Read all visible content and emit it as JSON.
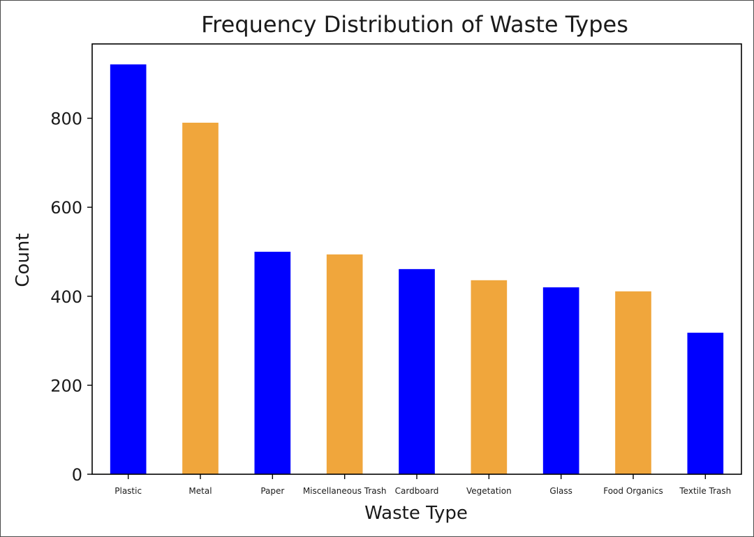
{
  "chart_data": {
    "type": "bar",
    "title": "Frequency Distribution of Waste Types",
    "xlabel": "Waste Type",
    "ylabel": "Count",
    "categories": [
      "Plastic",
      "Metal",
      "Paper",
      "Miscellaneous Trash",
      "Cardboard",
      "Vegetation",
      "Glass",
      "Food Organics",
      "Textile Trash"
    ],
    "values": [
      921,
      790,
      500,
      494,
      461,
      436,
      420,
      411,
      318
    ],
    "bar_colors": [
      "#0000ff",
      "#f0a63c",
      "#0000ff",
      "#f0a63c",
      "#0000ff",
      "#f0a63c",
      "#0000ff",
      "#f0a63c",
      "#0000ff"
    ],
    "ylim": [
      0,
      967
    ],
    "yticks": [
      0,
      200,
      400,
      600,
      800
    ],
    "grid": false,
    "legend": "none"
  }
}
